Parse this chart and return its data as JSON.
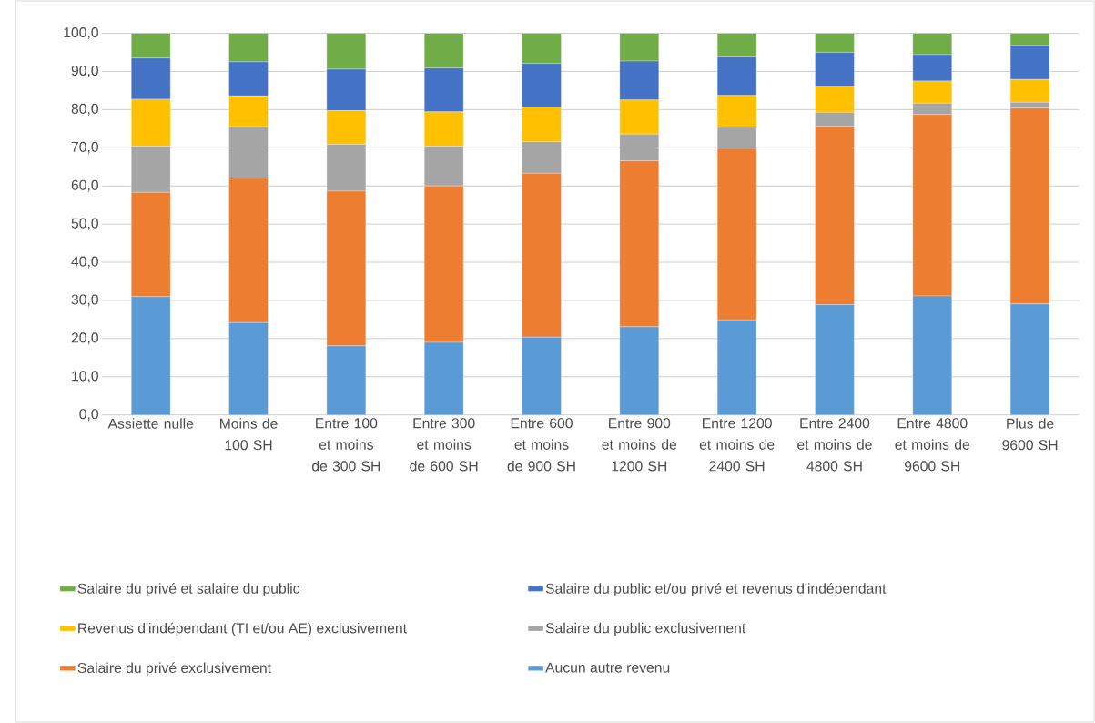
{
  "chart_data": {
    "type": "bar",
    "stacked": true,
    "categories": [
      "Assiette nulle",
      "Moins de 100 SH",
      "Entre 100 et moins de 300 SH",
      "Entre 300 et moins de 600 SH",
      "Entre 600 et moins de 900 SH",
      "Entre 900 et moins de 1200 SH",
      "Entre 1200 et moins de 2400 SH",
      "Entre 2400 et moins de 4800 SH",
      "Entre 4800 et moins de 9600 SH",
      "Plus de 9600 SH"
    ],
    "series": [
      {
        "name": "Aucun autre revenu",
        "color": "#5b9bd5",
        "values": [
          31.0,
          24.2,
          18.1,
          19.0,
          20.4,
          23.1,
          24.9,
          28.9,
          31.2,
          29.1
        ]
      },
      {
        "name": "Salaire du privé exclusivement",
        "color": "#ed7d31",
        "values": [
          27.3,
          37.8,
          40.5,
          41.0,
          42.9,
          43.5,
          44.9,
          46.7,
          47.5,
          51.3
        ]
      },
      {
        "name": "Salaire du public exclusivement",
        "color": "#a5a5a5",
        "values": [
          12.1,
          13.5,
          12.3,
          10.4,
          8.3,
          7.0,
          5.5,
          3.7,
          3.0,
          1.5
        ]
      },
      {
        "name": "Revenus d'indépendant (TI et/ou AE) exclusivement",
        "color": "#ffc000",
        "values": [
          12.3,
          8.1,
          8.8,
          9.0,
          9.0,
          8.9,
          8.4,
          6.8,
          5.8,
          6.0
        ]
      },
      {
        "name": "Salaire du public et/ou privé et revenus d'indépendant",
        "color": "#4472c4",
        "values": [
          10.8,
          8.9,
          10.9,
          11.5,
          11.5,
          10.2,
          10.1,
          8.9,
          6.9,
          8.9
        ]
      },
      {
        "name": "Salaire du privé et salaire du public",
        "color": "#70ad47",
        "values": [
          6.5,
          7.5,
          9.4,
          9.1,
          7.9,
          7.3,
          6.2,
          5.0,
          5.6,
          3.2
        ]
      }
    ],
    "ylim": [
      0,
      100
    ],
    "yticks": [
      {
        "value": 0,
        "label": "0,0"
      },
      {
        "value": 10,
        "label": "10,0"
      },
      {
        "value": 20,
        "label": "20,0"
      },
      {
        "value": 30,
        "label": "30,0"
      },
      {
        "value": 40,
        "label": "40,0"
      },
      {
        "value": 50,
        "label": "50,0"
      },
      {
        "value": 60,
        "label": "60,0"
      },
      {
        "value": 70,
        "label": "70,0"
      },
      {
        "value": 80,
        "label": "80,0"
      },
      {
        "value": 90,
        "label": "90,0"
      },
      {
        "value": 100,
        "label": "100,0"
      }
    ],
    "grid": "y",
    "legend": "bottom"
  }
}
